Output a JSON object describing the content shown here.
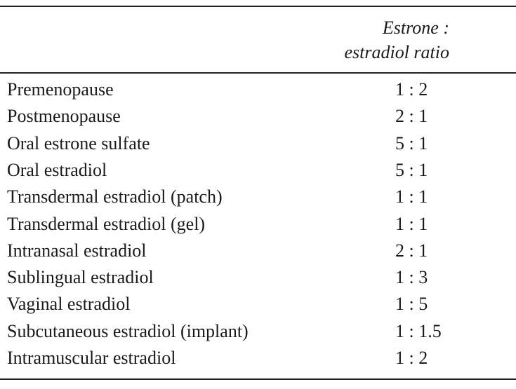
{
  "table": {
    "header": [
      "",
      "Estrone : estradiol ratio"
    ],
    "rows": [
      [
        "Premenopause",
        "1 : 2"
      ],
      [
        "Postmenopause",
        "2 : 1"
      ],
      [
        "Oral estrone sulfate",
        "5 : 1"
      ],
      [
        "Oral estradiol",
        "5 : 1"
      ],
      [
        "Transdermal estradiol (patch)",
        "1 : 1"
      ],
      [
        "Transdermal estradiol (gel)",
        "1 : 1"
      ],
      [
        "Intranasal estradiol",
        "2 : 1"
      ],
      [
        "Sublingual estradiol",
        "1 : 3"
      ],
      [
        "Vaginal estradiol",
        "1 : 5"
      ],
      [
        "Subcutaneous estradiol (implant)",
        "1 : 1.5"
      ],
      [
        "Intramuscular estradiol",
        "1 : 2"
      ]
    ]
  }
}
